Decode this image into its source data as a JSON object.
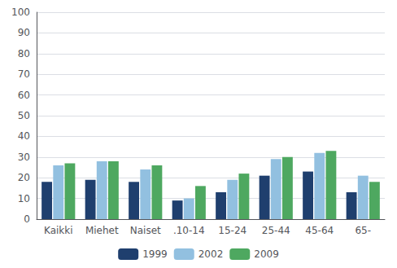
{
  "chart_data": {
    "type": "bar",
    "categories": [
      "Kaikki",
      "Miehet",
      "Naiset",
      ".10-14",
      "15-24",
      "25-44",
      "45-64",
      "65-"
    ],
    "series": [
      {
        "name": "1999",
        "color": "#1F3F6E",
        "values": [
          18,
          19,
          18,
          9,
          13,
          21,
          23,
          13
        ]
      },
      {
        "name": "2002",
        "color": "#92C0E0",
        "values": [
          26,
          28,
          24,
          10,
          19,
          29,
          32,
          21
        ]
      },
      {
        "name": "2009",
        "color": "#4EA860",
        "values": [
          27,
          28,
          26,
          16,
          22,
          30,
          33,
          18
        ]
      }
    ],
    "ylim": [
      0,
      100
    ],
    "yticks": [
      0,
      10,
      20,
      30,
      40,
      50,
      60,
      70,
      80,
      90,
      100
    ],
    "grid": true,
    "legend": "bottom"
  }
}
